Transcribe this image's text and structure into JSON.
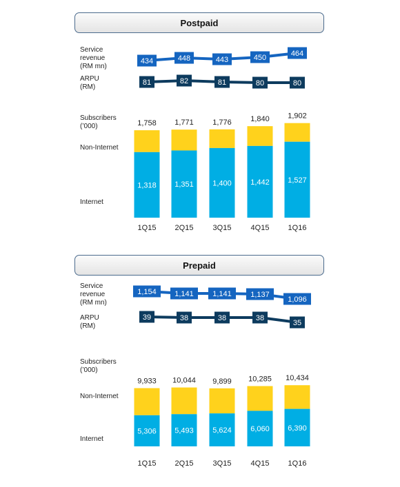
{
  "colors": {
    "revenue_line": "#1565c0",
    "arpu_line": "#0d3b5e",
    "internet": "#00aee4",
    "non_internet": "#ffd21c",
    "header_border": "#4a6a8c"
  },
  "chart_data": [
    {
      "type": "bar",
      "title": "Postpaid",
      "categories": [
        "1Q15",
        "2Q15",
        "3Q15",
        "4Q15",
        "1Q16"
      ],
      "series": [
        {
          "name": "Internet",
          "values": [
            1318,
            1351,
            1400,
            1442,
            1527
          ]
        },
        {
          "name": "Non-Internet",
          "values": [
            440,
            420,
            376,
            398,
            375
          ]
        }
      ],
      "totals": [
        1758,
        1771,
        1776,
        1840,
        1902
      ],
      "total_labels": [
        "1,758",
        "1,771",
        "1,776",
        "1,840",
        "1,902"
      ],
      "internet_labels": [
        "1,318",
        "1,351",
        "1,400",
        "1,442",
        "1,527"
      ],
      "service_revenue": {
        "values": [
          434,
          448,
          443,
          450,
          464
        ],
        "labels": [
          "434",
          "448",
          "443",
          "450",
          "464"
        ]
      },
      "arpu": {
        "values": [
          81,
          82,
          81,
          80,
          80
        ],
        "labels": [
          "81",
          "82",
          "81",
          "80",
          "80"
        ]
      },
      "ymax": 2200,
      "row_labels": {
        "revenue": [
          "Service",
          "revenue",
          "(RM mn)"
        ],
        "arpu": [
          "ARPU",
          "(RM)"
        ],
        "subscribers": [
          "Subscribers",
          "(’000)"
        ],
        "non_internet": "Non-Internet",
        "internet": "Internet"
      }
    },
    {
      "type": "bar",
      "title": "Prepaid",
      "categories": [
        "1Q15",
        "2Q15",
        "3Q15",
        "4Q15",
        "1Q16"
      ],
      "series": [
        {
          "name": "Internet",
          "values": [
            5306,
            5493,
            5624,
            6060,
            6390
          ]
        },
        {
          "name": "Non-Internet",
          "values": [
            4627,
            4551,
            4275,
            4225,
            4044
          ]
        }
      ],
      "totals": [
        9933,
        10044,
        9899,
        10285,
        10434
      ],
      "total_labels": [
        "9,933",
        "10,044",
        "9,899",
        "10,285",
        "10,434"
      ],
      "internet_labels": [
        "5,306",
        "5,493",
        "5,624",
        "6,060",
        "6,390"
      ],
      "service_revenue": {
        "values": [
          1154,
          1141,
          1141,
          1137,
          1096
        ],
        "labels": [
          "1,154",
          "1,141",
          "1,141",
          "1,137",
          "1,096"
        ]
      },
      "arpu": {
        "values": [
          39,
          38,
          38,
          38,
          35
        ],
        "labels": [
          "39",
          "38",
          "38",
          "38",
          "35"
        ]
      },
      "ymax": 11600,
      "row_labels": {
        "revenue": [
          "Service",
          "revenue",
          "(RM mn)"
        ],
        "arpu": [
          "ARPU",
          "(RM)"
        ],
        "subscribers": [
          "Subscribers",
          "(’000)"
        ],
        "non_internet": "Non-Internet",
        "internet": "Internet"
      }
    }
  ]
}
